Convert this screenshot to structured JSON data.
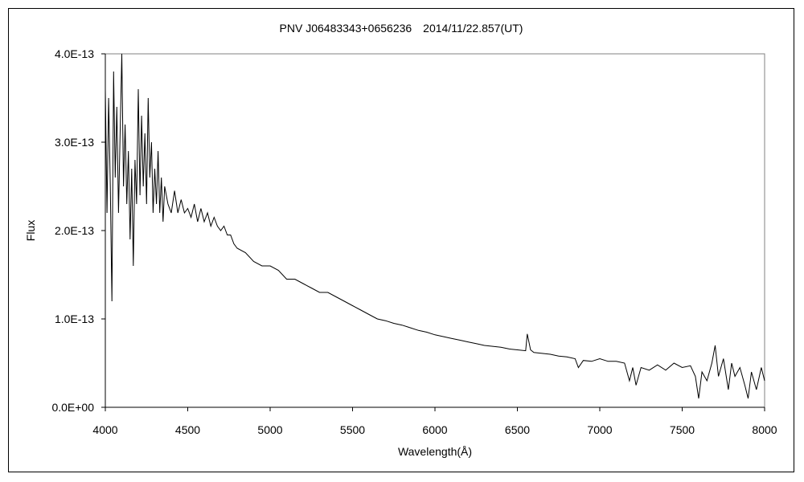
{
  "chart_data": {
    "type": "line",
    "title": "PNV J06483343+0656236　2014/11/22.857(UT)",
    "xlabel": "Wavelength(Å)",
    "ylabel": "Flux",
    "xlim": [
      4000,
      8000
    ],
    "ylim": [
      0,
      4e-13
    ],
    "x_ticks": [
      4000,
      4500,
      5000,
      5500,
      6000,
      6500,
      7000,
      7500,
      8000
    ],
    "x_tick_labels": [
      "4000",
      "4500",
      "5000",
      "5500",
      "6000",
      "6500",
      "7000",
      "7500",
      "8000"
    ],
    "y_ticks": [
      0,
      1e-13,
      2e-13,
      3e-13,
      4e-13
    ],
    "y_tick_labels": [
      "0.0E+00",
      "1.0E-13",
      "2.0E-13",
      "3.0E-13",
      "4.0E-13"
    ],
    "grid": false,
    "legend": "none",
    "line_color": "#000000",
    "series": [
      {
        "x": [
          4000,
          4010,
          4020,
          4030,
          4040,
          4050,
          4060,
          4070,
          4080,
          4090,
          4100,
          4110,
          4120,
          4130,
          4140,
          4150,
          4160,
          4170,
          4180,
          4190,
          4200,
          4210,
          4220,
          4230,
          4240,
          4250,
          4260,
          4270,
          4280,
          4290,
          4300,
          4310,
          4320,
          4330,
          4340,
          4350,
          4360,
          4380,
          4400,
          4420,
          4440,
          4460,
          4480,
          4500,
          4520,
          4540,
          4560,
          4580,
          4600,
          4620,
          4640,
          4660,
          4680,
          4700,
          4720,
          4740,
          4760,
          4780,
          4800,
          4850,
          4900,
          4950,
          5000,
          5050,
          5100,
          5150,
          5200,
          5250,
          5300,
          5350,
          5400,
          5450,
          5500,
          5550,
          5600,
          5650,
          5700,
          5750,
          5800,
          5850,
          5900,
          5950,
          6000,
          6050,
          6100,
          6150,
          6200,
          6250,
          6300,
          6350,
          6400,
          6450,
          6500,
          6550,
          6560,
          6580,
          6600,
          6650,
          6700,
          6750,
          6800,
          6850,
          6870,
          6900,
          6950,
          7000,
          7050,
          7100,
          7150,
          7180,
          7200,
          7220,
          7250,
          7300,
          7350,
          7400,
          7450,
          7500,
          7550,
          7580,
          7600,
          7620,
          7650,
          7680,
          7700,
          7720,
          7750,
          7780,
          7800,
          7820,
          7850,
          7880,
          7900,
          7920,
          7950,
          7980,
          8000
        ],
        "y": [
          3.6e-13,
          2.2e-13,
          3.5e-13,
          2.5e-13,
          1.2e-13,
          3.8e-13,
          2.6e-13,
          3.4e-13,
          2.2e-13,
          3.1e-13,
          4e-13,
          2.5e-13,
          3.2e-13,
          2.3e-13,
          2.9e-13,
          1.9e-13,
          2.7e-13,
          1.6e-13,
          2.8e-13,
          2.3e-13,
          3.6e-13,
          2.4e-13,
          3.3e-13,
          2.5e-13,
          3.1e-13,
          2.3e-13,
          3.5e-13,
          2.6e-13,
          3e-13,
          2.2e-13,
          2.7e-13,
          2.3e-13,
          2.9e-13,
          2.2e-13,
          2.6e-13,
          2.1e-13,
          2.5e-13,
          2.3e-13,
          2.2e-13,
          2.45e-13,
          2.2e-13,
          2.35e-13,
          2.2e-13,
          2.25e-13,
          2.15e-13,
          2.3e-13,
          2.1e-13,
          2.25e-13,
          2.1e-13,
          2.2e-13,
          2.05e-13,
          2.15e-13,
          2.05e-13,
          2e-13,
          2.05e-13,
          1.95e-13,
          1.95e-13,
          1.85e-13,
          1.8e-13,
          1.75e-13,
          1.65e-13,
          1.6e-13,
          1.6e-13,
          1.55e-13,
          1.45e-13,
          1.45e-13,
          1.4e-13,
          1.35e-13,
          1.3e-13,
          1.3e-13,
          1.25e-13,
          1.2e-13,
          1.15e-13,
          1.1e-13,
          1.05e-13,
          1e-13,
          9.8e-14,
          9.5e-14,
          9.3e-14,
          9e-14,
          8.7e-14,
          8.5e-14,
          8.2e-14,
          8e-14,
          7.8e-14,
          7.6e-14,
          7.4e-14,
          7.2e-14,
          7e-14,
          6.9e-14,
          6.8e-14,
          6.6e-14,
          6.5e-14,
          6.4e-14,
          8.3e-14,
          6.5e-14,
          6.2e-14,
          6.1e-14,
          6e-14,
          5.8e-14,
          5.7e-14,
          5.5e-14,
          4.5e-14,
          5.3e-14,
          5.2e-14,
          5.5e-14,
          5.2e-14,
          5.2e-14,
          5e-14,
          3e-14,
          4.5e-14,
          2.5e-14,
          4.5e-14,
          4.2e-14,
          4.8e-14,
          4.2e-14,
          5e-14,
          4.5e-14,
          4.7e-14,
          3.5e-14,
          1e-14,
          4e-14,
          3e-14,
          5e-14,
          7e-14,
          3.5e-14,
          5.5e-14,
          2e-14,
          5e-14,
          3.5e-14,
          4.5e-14,
          2.5e-14,
          1e-14,
          4e-14,
          2e-14,
          4.5e-14,
          3e-14
        ]
      }
    ]
  }
}
